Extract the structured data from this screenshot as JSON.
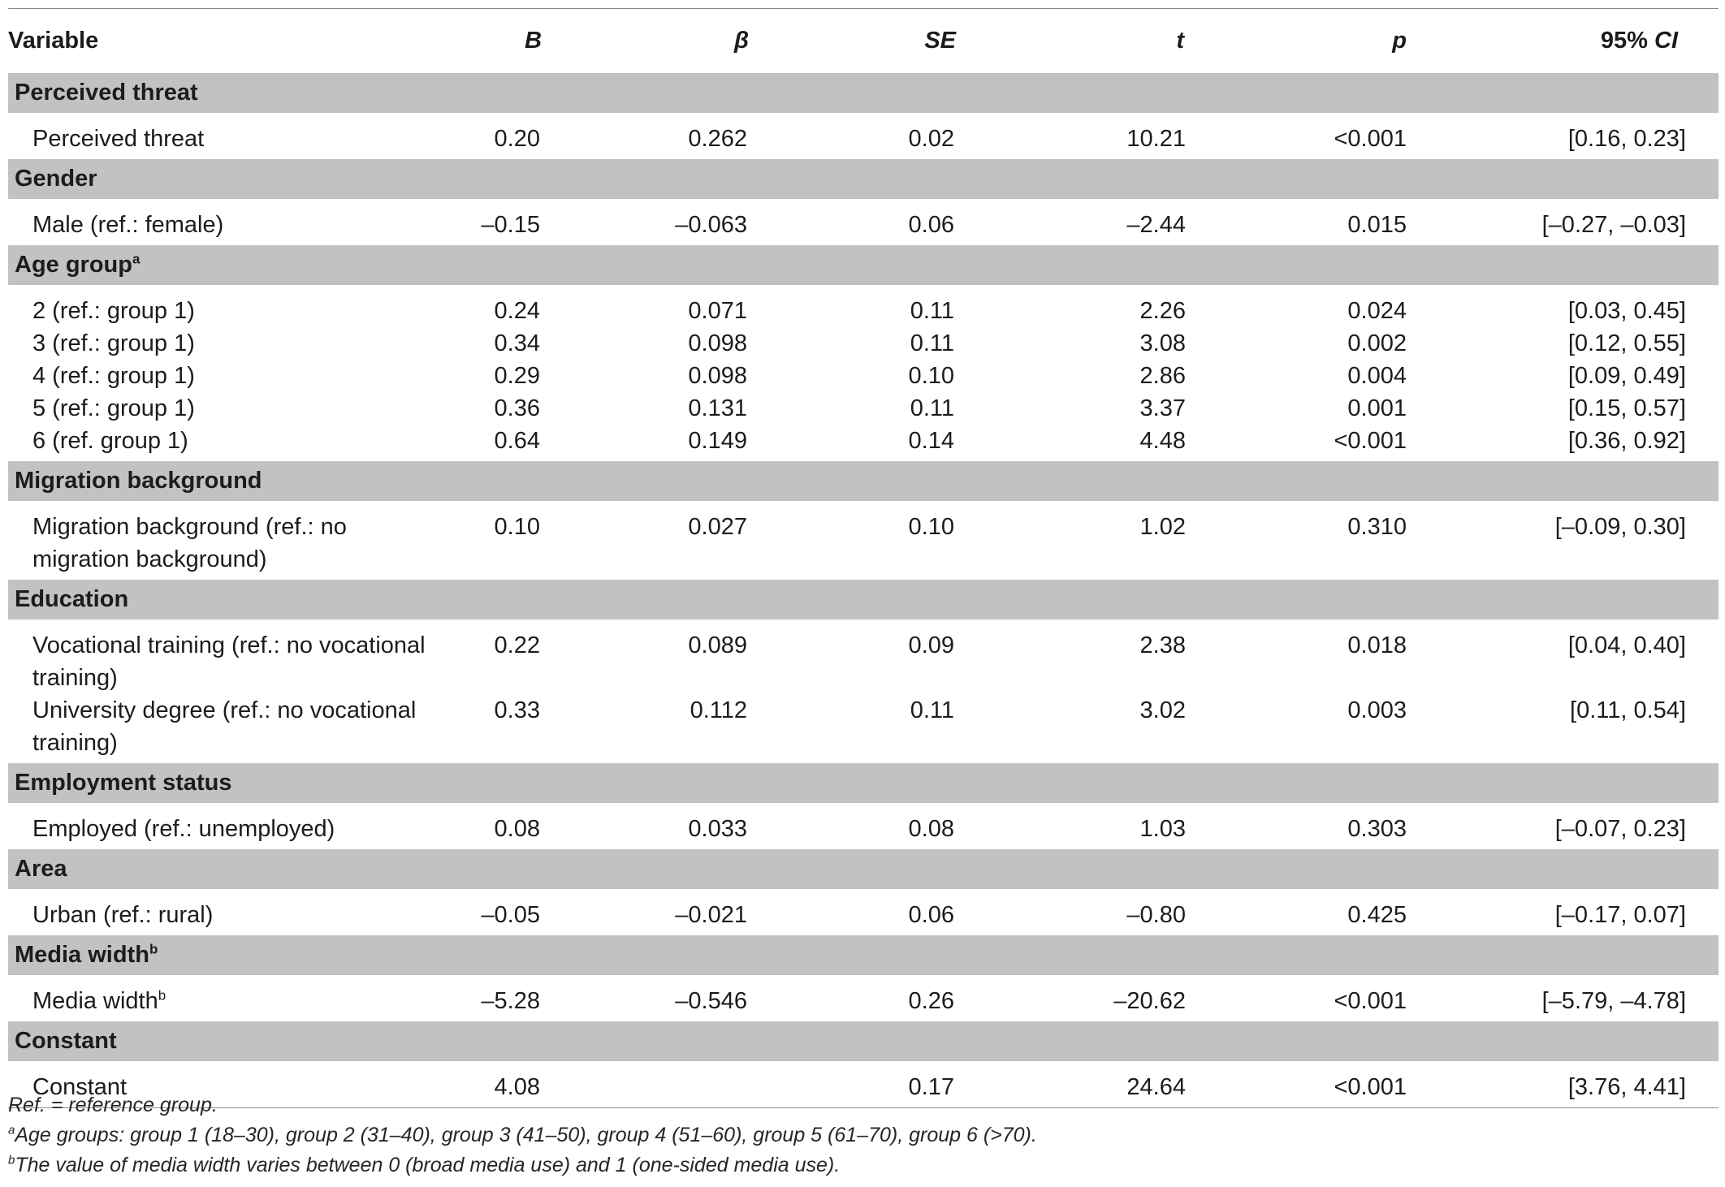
{
  "table": {
    "headers": {
      "variable": "Variable",
      "b": "B",
      "beta": "β",
      "se": "SE",
      "t": "t",
      "p": "p",
      "ci_prefix": "95% ",
      "ci_italic": "CI"
    },
    "sections": [
      {
        "title": "Perceived threat",
        "title_sup": "",
        "rows": [
          {
            "variable": "Perceived threat",
            "sup": "",
            "b": "0.20",
            "beta": "0.262",
            "se": "0.02",
            "t": "10.21",
            "p": "<0.001",
            "ci": "[0.16, 0.23]"
          }
        ]
      },
      {
        "title": "Gender",
        "title_sup": "",
        "rows": [
          {
            "variable": "Male (ref.: female)",
            "sup": "",
            "b": "–0.15",
            "beta": "–0.063",
            "se": "0.06",
            "t": "–2.44",
            "p": "0.015",
            "ci": "[–0.27, –0.03]"
          }
        ]
      },
      {
        "title": "Age group",
        "title_sup": "a",
        "rows": [
          {
            "variable": "2 (ref.: group 1)",
            "sup": "",
            "b": "0.24",
            "beta": "0.071",
            "se": "0.11",
            "t": "2.26",
            "p": "0.024",
            "ci": "[0.03, 0.45]"
          },
          {
            "variable": "3 (ref.: group 1)",
            "sup": "",
            "b": "0.34",
            "beta": "0.098",
            "se": "0.11",
            "t": "3.08",
            "p": "0.002",
            "ci": "[0.12, 0.55]"
          },
          {
            "variable": "4 (ref.: group 1)",
            "sup": "",
            "b": "0.29",
            "beta": "0.098",
            "se": "0.10",
            "t": "2.86",
            "p": "0.004",
            "ci": "[0.09, 0.49]"
          },
          {
            "variable": "5 (ref.: group 1)",
            "sup": "",
            "b": "0.36",
            "beta": "0.131",
            "se": "0.11",
            "t": "3.37",
            "p": "0.001",
            "ci": "[0.15, 0.57]"
          },
          {
            "variable": "6 (ref. group 1)",
            "sup": "",
            "b": "0.64",
            "beta": "0.149",
            "se": "0.14",
            "t": "4.48",
            "p": "<0.001",
            "ci": "[0.36, 0.92]"
          }
        ]
      },
      {
        "title": "Migration background",
        "title_sup": "",
        "rows": [
          {
            "variable": "Migration background (ref.: no migration background)",
            "sup": "",
            "b": "0.10",
            "beta": "0.027",
            "se": "0.10",
            "t": "1.02",
            "p": "0.310",
            "ci": "[–0.09, 0.30]"
          }
        ]
      },
      {
        "title": "Education",
        "title_sup": "",
        "rows": [
          {
            "variable": "Vocational training (ref.: no vocational training)",
            "sup": "",
            "b": "0.22",
            "beta": "0.089",
            "se": "0.09",
            "t": "2.38",
            "p": "0.018",
            "ci": "[0.04, 0.40]"
          },
          {
            "variable": "University degree (ref.: no vocational training)",
            "sup": "",
            "b": "0.33",
            "beta": "0.112",
            "se": "0.11",
            "t": "3.02",
            "p": "0.003",
            "ci": "[0.11, 0.54]"
          }
        ]
      },
      {
        "title": "Employment status",
        "title_sup": "",
        "rows": [
          {
            "variable": "Employed (ref.: unemployed)",
            "sup": "",
            "b": "0.08",
            "beta": "0.033",
            "se": "0.08",
            "t": "1.03",
            "p": "0.303",
            "ci": "[–0.07, 0.23]"
          }
        ]
      },
      {
        "title": "Area",
        "title_sup": "",
        "rows": [
          {
            "variable": "Urban (ref.: rural)",
            "sup": "",
            "b": "–0.05",
            "beta": "–0.021",
            "se": "0.06",
            "t": "–0.80",
            "p": "0.425",
            "ci": "[–0.17, 0.07]"
          }
        ]
      },
      {
        "title": "Media width",
        "title_sup": "b",
        "rows": [
          {
            "variable": "Media width",
            "sup": "b",
            "b": "–5.28",
            "beta": "–0.546",
            "se": "0.26",
            "t": "–20.62",
            "p": "<0.001",
            "ci": "[–5.79, –4.78]"
          }
        ]
      },
      {
        "title": "Constant",
        "title_sup": "",
        "rows": [
          {
            "variable": "Constant",
            "sup": "",
            "b": "4.08",
            "beta": "",
            "se": "0.17",
            "t": "24.64",
            "p": "<0.001",
            "ci": "[3.76, 4.41]"
          }
        ]
      }
    ]
  },
  "notes": [
    {
      "sup": "",
      "text": "Ref. = reference group."
    },
    {
      "sup": "a",
      "text": "Age groups: group 1 (18–30), group 2 (31–40), group 3 (41–50), group 4 (51–60), group 5 (61–70), group 6 (>70)."
    },
    {
      "sup": "b",
      "text": "The value of media width varies between 0 (broad media use) and 1 (one-sided media use)."
    }
  ]
}
